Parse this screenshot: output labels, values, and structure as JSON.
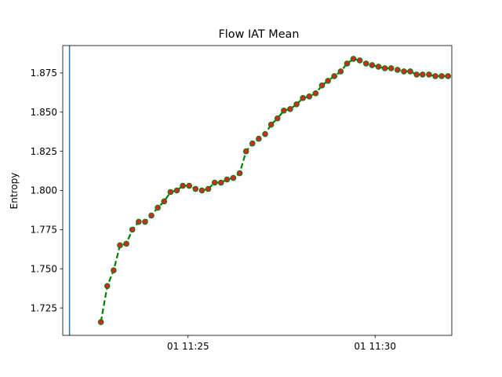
{
  "chart_data": {
    "type": "line",
    "title": "Flow IAT Mean",
    "xlabel": "",
    "ylabel": "Entropy",
    "x_tick_labels": [
      {
        "label": "01 11:25",
        "minute": 25.0
      },
      {
        "label": "01 11:30",
        "minute": 30.0
      }
    ],
    "y_tick_labels": [
      "1.725",
      "1.750",
      "1.775",
      "1.800",
      "1.825",
      "1.850",
      "1.875"
    ],
    "y_ticks": [
      1.725,
      1.75,
      1.775,
      1.8,
      1.825,
      1.85,
      1.875
    ],
    "xlim": [
      21.65,
      32.05
    ],
    "ylim": [
      1.7075,
      1.8925
    ],
    "grid": false,
    "vertical_line": {
      "minute": 21.83,
      "color": "#1f77b4"
    },
    "series": [
      {
        "line_color": "#008000",
        "line_style": "dashed",
        "marker_face": "#d62728",
        "marker_edge": "#008000",
        "x": [
          22.67,
          22.84,
          23.01,
          23.18,
          23.35,
          23.51,
          23.68,
          23.85,
          24.02,
          24.19,
          24.36,
          24.53,
          24.7,
          24.86,
          25.03,
          25.2,
          25.37,
          25.54,
          25.71,
          25.88,
          26.04,
          26.21,
          26.38,
          26.55,
          26.72,
          26.89,
          27.06,
          27.22,
          27.39,
          27.56,
          27.73,
          27.9,
          28.07,
          28.24,
          28.41,
          28.58,
          28.74,
          28.91,
          29.08,
          29.25,
          29.42,
          29.59,
          29.76,
          29.92,
          30.09,
          30.26,
          30.43,
          30.6,
          30.77,
          30.94,
          31.11,
          31.27,
          31.44,
          31.61,
          31.78,
          31.95
        ],
        "y": [
          1.716,
          1.739,
          1.749,
          1.765,
          1.766,
          1.775,
          1.78,
          1.78,
          1.784,
          1.789,
          1.793,
          1.799,
          1.8,
          1.803,
          1.803,
          1.801,
          1.8,
          1.801,
          1.805,
          1.805,
          1.807,
          1.808,
          1.811,
          1.825,
          1.83,
          1.833,
          1.836,
          1.842,
          1.846,
          1.851,
          1.852,
          1.855,
          1.859,
          1.86,
          1.862,
          1.867,
          1.87,
          1.873,
          1.876,
          1.881,
          1.884,
          1.883,
          1.881,
          1.88,
          1.879,
          1.878,
          1.878,
          1.877,
          1.876,
          1.876,
          1.874,
          1.874,
          1.874,
          1.873,
          1.873,
          1.873
        ]
      }
    ]
  }
}
